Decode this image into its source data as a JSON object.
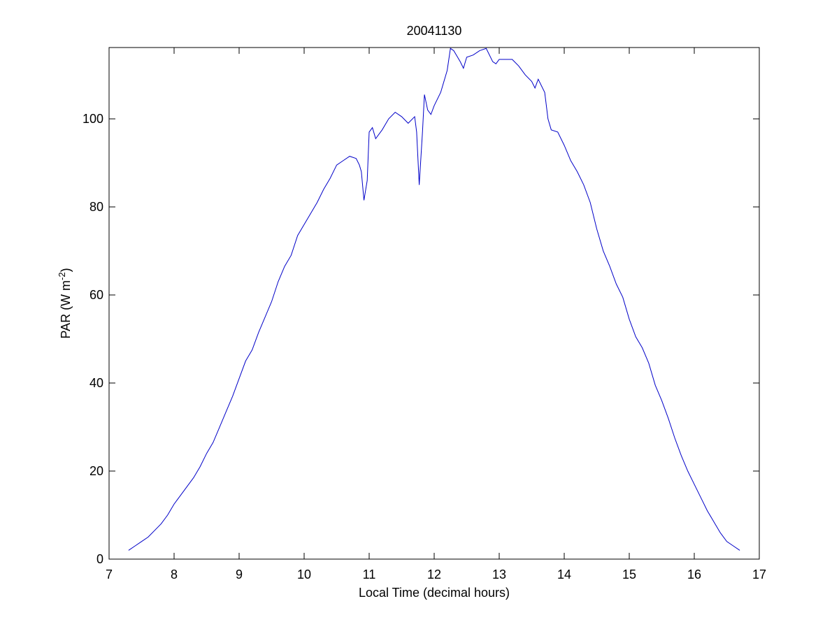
{
  "chart_data": {
    "type": "line",
    "title": "20041130",
    "x_label": "Local Time (decimal hours)",
    "y_label": {
      "text": "PAR (W m",
      "superscript": "-2",
      "suffix": ")"
    },
    "xlim": [
      7,
      17
    ],
    "xticks": [
      7,
      8,
      9,
      10,
      11,
      12,
      13,
      14,
      15,
      16,
      17
    ],
    "ylim": [
      0,
      116.2
    ],
    "yticks": [
      0,
      20,
      40,
      60,
      80,
      100
    ],
    "grid": false,
    "series": [
      {
        "color": "#0000c8",
        "x": [
          7.3,
          7.4,
          7.5,
          7.6,
          7.7,
          7.8,
          7.9,
          8.0,
          8.1,
          8.2,
          8.3,
          8.4,
          8.5,
          8.6,
          8.7,
          8.8,
          8.9,
          9.0,
          9.1,
          9.2,
          9.3,
          9.4,
          9.5,
          9.6,
          9.7,
          9.8,
          9.9,
          10.0,
          10.1,
          10.2,
          10.3,
          10.4,
          10.5,
          10.6,
          10.7,
          10.8,
          10.85,
          10.88,
          10.92,
          10.97,
          11.0,
          11.05,
          11.1,
          11.2,
          11.3,
          11.4,
          11.5,
          11.6,
          11.7,
          11.73,
          11.77,
          11.82,
          11.85,
          11.9,
          11.95,
          12.0,
          12.1,
          12.2,
          12.25,
          12.3,
          12.4,
          12.45,
          12.5,
          12.6,
          12.7,
          12.8,
          12.9,
          12.95,
          13.0,
          13.1,
          13.2,
          13.3,
          13.4,
          13.5,
          13.55,
          13.6,
          13.7,
          13.75,
          13.8,
          13.9,
          14.0,
          14.1,
          14.2,
          14.3,
          14.4,
          14.5,
          14.6,
          14.7,
          14.8,
          14.9,
          15.0,
          15.1,
          15.2,
          15.3,
          15.4,
          15.5,
          15.6,
          15.7,
          15.8,
          15.9,
          16.0,
          16.1,
          16.2,
          16.3,
          16.4,
          16.5,
          16.6,
          16.7
        ],
        "values": [
          2,
          3,
          4,
          5,
          6.5,
          8,
          10,
          12.5,
          14.5,
          16.5,
          18.5,
          21,
          24,
          26.5,
          30,
          33.5,
          37,
          41,
          45,
          47.5,
          51.5,
          55,
          58.5,
          63,
          66.5,
          69,
          73.5,
          76,
          78.5,
          81,
          84,
          86.5,
          89.5,
          90.5,
          91.5,
          91,
          89.5,
          88,
          81.5,
          86,
          97,
          98,
          95.5,
          97.5,
          100,
          101.5,
          100.5,
          99,
          100.5,
          97,
          85,
          97,
          105.5,
          102,
          101,
          103,
          106,
          111,
          116,
          115.5,
          113,
          111.5,
          114,
          114.5,
          115.5,
          116,
          113,
          112.5,
          113.5,
          113.5,
          113.5,
          112,
          110,
          108.5,
          107,
          109,
          106,
          100,
          97.5,
          97,
          94,
          90.5,
          88,
          85,
          81,
          75,
          70,
          66.5,
          62.5,
          59.5,
          54.5,
          50.5,
          48,
          44.5,
          39.5,
          36,
          32,
          27.5,
          23.5,
          20,
          17,
          14,
          11,
          8.5,
          6,
          4,
          3,
          2
        ]
      }
    ]
  }
}
